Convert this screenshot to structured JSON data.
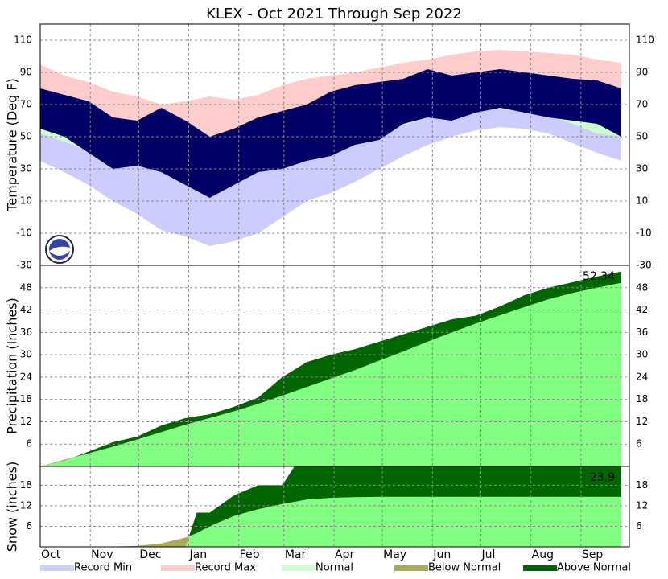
{
  "title": "KLEX - Oct 2021 Through Sep 2022",
  "legend": [
    {
      "name": "Record Min",
      "color": "#ccccff"
    },
    {
      "name": "Record Max",
      "color": "#ffcccc"
    },
    {
      "name": "Normal",
      "color": "#ccffcc"
    },
    {
      "name": "Below Normal",
      "color": "#aaa955"
    },
    {
      "name": "Above Normal",
      "color": "#006600"
    }
  ],
  "chart_data": [
    {
      "type": "temperature",
      "y_label": "Temperature (Deg F)",
      "xlim": [
        0,
        365
      ],
      "ylim": [
        -30,
        120
      ],
      "yticks": [
        -30,
        -10,
        10,
        30,
        50,
        70,
        90,
        110
      ],
      "x": [
        0,
        15,
        30,
        45,
        60,
        75,
        90,
        105,
        120,
        135,
        150,
        165,
        180,
        195,
        210,
        225,
        240,
        255,
        270,
        285,
        300,
        315,
        330,
        345,
        360
      ],
      "record_max": [
        95,
        88,
        84,
        78,
        75,
        70,
        72,
        75,
        73,
        76,
        82,
        86,
        88,
        90,
        93,
        96,
        98,
        101,
        103,
        104,
        103,
        102,
        101,
        98,
        96
      ],
      "record_min": [
        35,
        28,
        20,
        10,
        2,
        -8,
        -12,
        -18,
        -15,
        -10,
        0,
        10,
        15,
        22,
        30,
        38,
        45,
        50,
        54,
        56,
        55,
        52,
        46,
        40,
        35
      ],
      "normal_high": [
        75,
        70,
        65,
        60,
        52,
        46,
        42,
        40,
        43,
        46,
        52,
        58,
        64,
        68,
        73,
        78,
        82,
        84,
        86,
        86,
        86,
        84,
        82,
        78,
        75
      ],
      "normal_low": [
        52,
        47,
        41,
        36,
        32,
        28,
        26,
        24,
        25,
        28,
        32,
        38,
        42,
        46,
        52,
        57,
        62,
        65,
        67,
        67,
        66,
        63,
        58,
        52,
        50
      ],
      "observed_high": [
        80,
        76,
        72,
        62,
        60,
        68,
        60,
        50,
        55,
        62,
        66,
        70,
        78,
        82,
        84,
        86,
        92,
        88,
        90,
        92,
        90,
        88,
        86,
        85,
        80
      ],
      "observed_low": [
        55,
        50,
        40,
        30,
        32,
        28,
        20,
        12,
        20,
        28,
        30,
        35,
        38,
        45,
        48,
        58,
        62,
        60,
        65,
        68,
        65,
        62,
        60,
        58,
        50
      ],
      "colors": {
        "record_max": "#ffcccc",
        "record_min": "#ccccff",
        "normal": "#ccffcc",
        "observed": "#000066"
      }
    },
    {
      "type": "cumulative",
      "y_label": "Precipitation (Inches)",
      "annotation": "52.34",
      "xlim": [
        0,
        365
      ],
      "ylim": [
        0,
        54
      ],
      "yticks": [
        6,
        12,
        18,
        24,
        30,
        36,
        42,
        48
      ],
      "x": [
        0,
        15,
        30,
        45,
        60,
        75,
        90,
        105,
        120,
        135,
        150,
        165,
        180,
        195,
        210,
        225,
        240,
        255,
        270,
        285,
        300,
        315,
        330,
        345,
        360
      ],
      "observed": [
        0,
        1.5,
        4,
        6.5,
        8,
        11,
        13,
        14,
        16,
        18.5,
        24,
        28,
        30,
        31.5,
        33.5,
        35.5,
        37.5,
        39.5,
        40.5,
        43,
        46,
        48,
        49.5,
        51,
        52.34
      ],
      "normal": [
        0,
        1.8,
        3.5,
        5.3,
        7.2,
        9.2,
        11.2,
        13.0,
        14.8,
        16.8,
        19.0,
        21.3,
        23.6,
        25.9,
        28.4,
        30.9,
        33.5,
        36.0,
        38.4,
        40.6,
        42.8,
        44.9,
        46.6,
        48.0,
        49.3
      ],
      "colors": {
        "normal": "#80ff80",
        "above": "#006600",
        "below": "#aaa955"
      }
    },
    {
      "type": "cumulative",
      "y_label": "Snow (inches)",
      "annotation": "23.9",
      "xlim": [
        0,
        365
      ],
      "ylim": [
        0,
        23.5
      ],
      "yticks": [
        6,
        12,
        18
      ],
      "xticks": [
        {
          "value": 0,
          "label": "Oct"
        },
        {
          "value": 31,
          "label": "Nov"
        },
        {
          "value": 61,
          "label": "Dec"
        },
        {
          "value": 92,
          "label": "Jan"
        },
        {
          "value": 123,
          "label": "Feb"
        },
        {
          "value": 151,
          "label": "Mar"
        },
        {
          "value": 182,
          "label": "Apr"
        },
        {
          "value": 212,
          "label": "May"
        },
        {
          "value": 243,
          "label": "Jun"
        },
        {
          "value": 273,
          "label": "Jul"
        },
        {
          "value": 304,
          "label": "Aug"
        },
        {
          "value": 335,
          "label": "Sep"
        }
      ],
      "x": [
        0,
        15,
        30,
        45,
        60,
        75,
        90,
        97,
        105,
        120,
        135,
        150,
        158,
        165,
        180,
        195,
        210,
        225,
        240,
        255,
        270,
        285,
        300,
        315,
        330,
        345,
        360
      ],
      "observed": [
        0,
        0,
        0,
        0,
        0,
        0,
        0,
        10,
        10,
        15,
        18,
        18,
        23.9,
        23.9,
        23.9,
        23.9,
        23.9,
        23.9,
        23.9,
        23.9,
        23.9,
        23.9,
        23.9,
        23.9,
        23.9,
        23.9,
        23.9
      ],
      "normal": [
        0,
        0,
        0,
        0.1,
        0.3,
        1,
        2.7,
        4,
        6,
        9,
        11,
        12.5,
        13.2,
        13.8,
        14.3,
        14.5,
        14.6,
        14.6,
        14.6,
        14.6,
        14.6,
        14.6,
        14.6,
        14.6,
        14.6,
        14.6,
        14.6
      ],
      "colors": {
        "normal": "#80ff80",
        "above": "#006600",
        "below": "#aaa955"
      }
    }
  ]
}
